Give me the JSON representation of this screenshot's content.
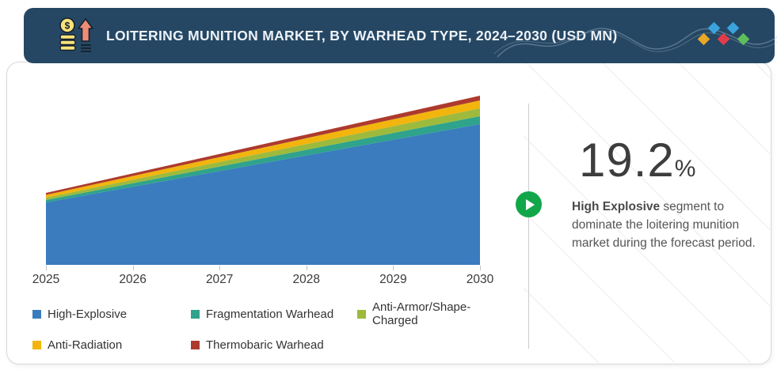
{
  "header": {
    "title": "LOITERING MUNITION MARKET, BY WARHEAD TYPE, 2024–2030 (USD MN)",
    "icon_name": "money-growth-icon",
    "logo": {
      "diamond_colors": [
        "#E9A826",
        "#3BA3DC",
        "#E23C4B",
        "#3BA3DC",
        "#5FBE5C"
      ]
    }
  },
  "colors": {
    "header_navy": "#254763",
    "play_green": "#12A64B",
    "divider_gray": "#cccccc"
  },
  "chart_data": {
    "type": "area",
    "stacked": true,
    "title": "LOITERING MUNITION MARKET, BY WARHEAD TYPE, 2024–2030 (USD MN)",
    "xlabel": "",
    "ylabel": "",
    "units": "USD MN (y-axis unlabeled; values estimated, relative scale)",
    "x": [
      2025,
      2026,
      2027,
      2028,
      2029,
      2030
    ],
    "series": [
      {
        "name": "High-Explosive",
        "color": "#3A7CBE",
        "values": [
          790,
          988,
          1186,
          1384,
          1582,
          1780
        ]
      },
      {
        "name": "Fragmentation Warhead",
        "color": "#2FA38B",
        "values": [
          30,
          44,
          58,
          72,
          86,
          100
        ]
      },
      {
        "name": "Anti-Armor/Shape-Charged",
        "color": "#9DBA3D",
        "values": [
          30,
          44,
          58,
          72,
          86,
          100
        ]
      },
      {
        "name": "Anti-Radiation",
        "color": "#F2B50D",
        "values": [
          35,
          48,
          61,
          74,
          87,
          100
        ]
      },
      {
        "name": "Thermobaric Warhead",
        "color": "#AD3A2E",
        "values": [
          25,
          32,
          39,
          46,
          53,
          60
        ]
      }
    ],
    "legend_position": "bottom",
    "grid": false,
    "y_axis_visible": false
  },
  "callout": {
    "value": "19.2",
    "unit": "%",
    "highlight": "High Explosive",
    "text": " segment to dominate the loitering munition market during the forecast period."
  }
}
